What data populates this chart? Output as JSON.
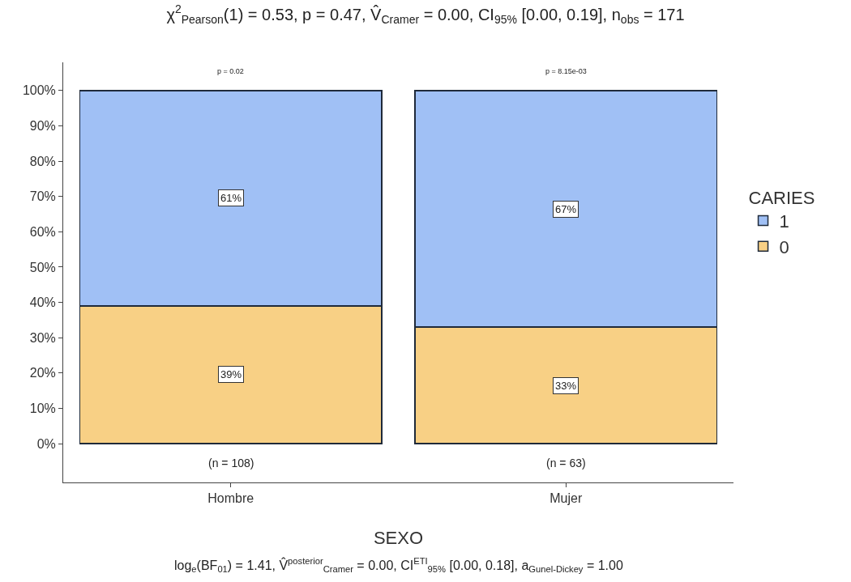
{
  "chart_data": {
    "type": "bar",
    "stacked": true,
    "title": "χ$^{2}$$_{Pearson}$(1) = 0.53, p = 0.47, V̂$_{Cramer}$ = 0.00, CI$_{95%}$ [0.00, 0.19], n$_{obs}$ = 171",
    "xlabel": "SEXO",
    "legend_title": "CARIES",
    "legend": "right",
    "categories": [
      "Hombre",
      "Mujer"
    ],
    "series": [
      {
        "name": "0",
        "color": "#f8d085",
        "values": [
          39,
          33
        ],
        "value_labels": [
          "39%",
          "33%"
        ]
      },
      {
        "name": "1",
        "color": "#a0c0f5",
        "values": [
          61,
          67
        ],
        "value_labels": [
          "61%",
          "67%"
        ]
      }
    ],
    "ylim": [
      -11,
      108
    ],
    "yticks": [
      {
        "value": 0,
        "label": "0%"
      },
      {
        "value": 10,
        "label": "10%"
      },
      {
        "value": 20,
        "label": "20%"
      },
      {
        "value": 30,
        "label": "30%"
      },
      {
        "value": 40,
        "label": "40%"
      },
      {
        "value": 50,
        "label": "50%"
      },
      {
        "value": 60,
        "label": "60%"
      },
      {
        "value": 70,
        "label": "70%"
      },
      {
        "value": 80,
        "label": "80%"
      },
      {
        "value": 90,
        "label": "90%"
      },
      {
        "value": 100,
        "label": "100%"
      }
    ],
    "grid": false,
    "annotations": [
      "p = 0.02",
      "p = 8.15e-03",
      "(n = 108)",
      "(n = 63)",
      "log$_{e}$(BF$_{01}$) = 1.41, V̂$^{posterior}$$_{Cramer}$ = 0.00, CI$^{ETI}$$_{95%}$ [0.00, 0.18], a$_{Gunel-Dickey}$ = 1.00"
    ]
  }
}
